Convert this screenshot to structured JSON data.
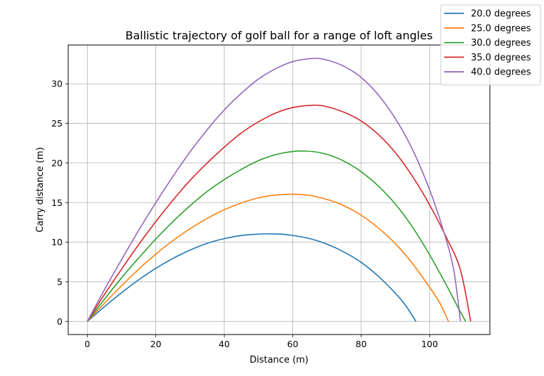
{
  "chart_data": {
    "type": "line",
    "title": "Ballistic trajectory of golf ball for a range of loft angles",
    "xlabel": "Distance (m)",
    "ylabel": "Carry distance (m)",
    "xlim": [
      -5.6,
      117.6
    ],
    "ylim": [
      -1.66,
      34.9
    ],
    "xticks": [
      0,
      20,
      40,
      60,
      80,
      100
    ],
    "yticks": [
      0,
      5,
      10,
      15,
      20,
      25,
      30
    ],
    "grid": true,
    "legend_position": "top-right",
    "series": [
      {
        "name": "20.0 degrees",
        "color": "#1f77b4",
        "points": [
          [
            0,
            0
          ],
          [
            5,
            1.86
          ],
          [
            10,
            3.62
          ],
          [
            15,
            5.25
          ],
          [
            20,
            6.7
          ],
          [
            25,
            7.95
          ],
          [
            30,
            9.0
          ],
          [
            35,
            9.85
          ],
          [
            40,
            10.45
          ],
          [
            45,
            10.85
          ],
          [
            50,
            11.02
          ],
          [
            53.5,
            11.05
          ],
          [
            57,
            11.0
          ],
          [
            60,
            10.85
          ],
          [
            65,
            10.45
          ],
          [
            70,
            9.75
          ],
          [
            75,
            8.75
          ],
          [
            80,
            7.45
          ],
          [
            85,
            5.7
          ],
          [
            90,
            3.55
          ],
          [
            93,
            2.0
          ],
          [
            96,
            0
          ]
        ]
      },
      {
        "name": "25.0 degrees",
        "color": "#ff7f0e",
        "points": [
          [
            0,
            0
          ],
          [
            5,
            2.3
          ],
          [
            10,
            4.5
          ],
          [
            15,
            6.6
          ],
          [
            20,
            8.5
          ],
          [
            25,
            10.2
          ],
          [
            30,
            11.7
          ],
          [
            35,
            13.0
          ],
          [
            40,
            14.1
          ],
          [
            45,
            14.95
          ],
          [
            50,
            15.6
          ],
          [
            55,
            15.95
          ],
          [
            60,
            16.05
          ],
          [
            65,
            15.9
          ],
          [
            70,
            15.4
          ],
          [
            75,
            14.6
          ],
          [
            80,
            13.4
          ],
          [
            85,
            11.8
          ],
          [
            90,
            9.8
          ],
          [
            95,
            7.3
          ],
          [
            100,
            4.3
          ],
          [
            103,
            2.3
          ],
          [
            105.5,
            0
          ]
        ]
      },
      {
        "name": "30.0 degrees",
        "color": "#2ca02c",
        "points": [
          [
            0,
            0
          ],
          [
            5,
            2.8
          ],
          [
            10,
            5.5
          ],
          [
            15,
            8.0
          ],
          [
            20,
            10.4
          ],
          [
            25,
            12.6
          ],
          [
            30,
            14.6
          ],
          [
            35,
            16.4
          ],
          [
            40,
            17.9
          ],
          [
            45,
            19.2
          ],
          [
            50,
            20.3
          ],
          [
            55,
            21.05
          ],
          [
            60,
            21.45
          ],
          [
            64,
            21.5
          ],
          [
            68,
            21.3
          ],
          [
            72,
            20.8
          ],
          [
            76,
            20.0
          ],
          [
            80,
            18.9
          ],
          [
            85,
            17.1
          ],
          [
            90,
            14.8
          ],
          [
            95,
            11.9
          ],
          [
            100,
            8.4
          ],
          [
            105,
            4.5
          ],
          [
            108,
            2.0
          ],
          [
            110.5,
            0
          ]
        ]
      },
      {
        "name": "35.0 degrees",
        "color": "#d62728",
        "points": [
          [
            0,
            0
          ],
          [
            5,
            3.4
          ],
          [
            10,
            6.6
          ],
          [
            15,
            9.7
          ],
          [
            20,
            12.6
          ],
          [
            25,
            15.3
          ],
          [
            30,
            17.8
          ],
          [
            35,
            20.0
          ],
          [
            40,
            22.0
          ],
          [
            45,
            23.8
          ],
          [
            50,
            25.2
          ],
          [
            55,
            26.3
          ],
          [
            60,
            27.0
          ],
          [
            66,
            27.3
          ],
          [
            70,
            27.1
          ],
          [
            75,
            26.4
          ],
          [
            80,
            25.3
          ],
          [
            85,
            23.6
          ],
          [
            90,
            21.3
          ],
          [
            95,
            18.3
          ],
          [
            100,
            14.7
          ],
          [
            105,
            10.5
          ],
          [
            109,
            6.5
          ],
          [
            112,
            0
          ]
        ]
      },
      {
        "name": "40.0 degrees",
        "color": "#9467bd",
        "points": [
          [
            0,
            0
          ],
          [
            5,
            4.0
          ],
          [
            10,
            7.8
          ],
          [
            15,
            11.5
          ],
          [
            20,
            15.0
          ],
          [
            25,
            18.3
          ],
          [
            30,
            21.4
          ],
          [
            35,
            24.2
          ],
          [
            40,
            26.7
          ],
          [
            45,
            28.8
          ],
          [
            50,
            30.6
          ],
          [
            55,
            31.9
          ],
          [
            60,
            32.8
          ],
          [
            66,
            33.2
          ],
          [
            70,
            33.0
          ],
          [
            75,
            32.2
          ],
          [
            80,
            30.8
          ],
          [
            85,
            28.6
          ],
          [
            90,
            25.6
          ],
          [
            95,
            21.7
          ],
          [
            100,
            16.6
          ],
          [
            104,
            11.5
          ],
          [
            107,
            6.6
          ],
          [
            109,
            0
          ]
        ]
      }
    ]
  }
}
